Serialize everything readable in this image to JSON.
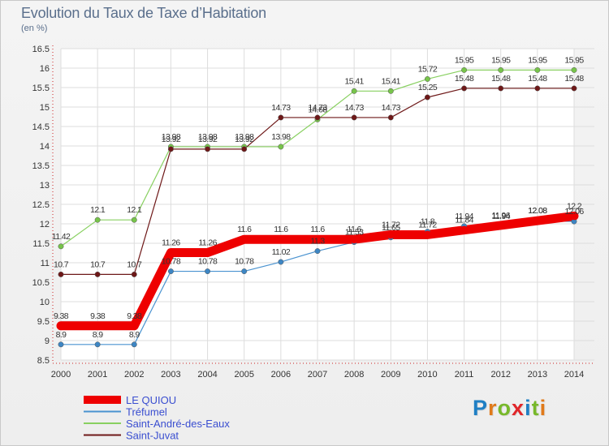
{
  "header": {
    "title": "Evolution du Taux de Taxe d’Habitation",
    "subtitle": "(en %)"
  },
  "logo": {
    "text": "Proxiti",
    "letter_colors": [
      "#1f7fc4",
      "#e07a1a",
      "#77b82a",
      "#e0262a",
      "#1f7fc4",
      "#77b82a",
      "#e07a1a"
    ]
  },
  "chart_data": {
    "type": "line",
    "title": "Evolution du Taux de Taxe d’Habitation",
    "ylabel": "(en %)",
    "xlabel": "",
    "x": [
      "2000",
      "2001",
      "2002",
      "2003",
      "2004",
      "2005",
      "2006",
      "2007",
      "2008",
      "2009",
      "2010",
      "2011",
      "2012",
      "2013",
      "2014"
    ],
    "ylim": [
      8.5,
      16.5
    ],
    "yticks": [
      "8.5",
      "9",
      "9.5",
      "10",
      "10.5",
      "11",
      "11.5",
      "12",
      "12.5",
      "13",
      "13.5",
      "14",
      "14.5",
      "15",
      "15.5",
      "16",
      "16.5"
    ],
    "grid": true,
    "legend_position": "bottom-left",
    "series": [
      {
        "name": "LE QUIOU",
        "color": "#ee0000",
        "marker": "#ee0000",
        "values": [
          9.38,
          9.38,
          9.38,
          11.26,
          11.26,
          11.6,
          11.6,
          11.6,
          11.6,
          11.72,
          11.72,
          11.84,
          11.96,
          12.08,
          12.2
        ],
        "labels": [
          "9.38",
          "9.38",
          "9.38",
          "11.26",
          "11.26",
          "11.6",
          "11.6",
          "11.6",
          "11.6",
          "11.72",
          "11.72",
          "11.84",
          "11.96",
          "12.08",
          "12.2"
        ]
      },
      {
        "name": "Tréfumel",
        "color": "#4a93d0",
        "marker": "#3d86c4",
        "values": [
          8.9,
          8.9,
          8.9,
          10.78,
          10.78,
          10.78,
          11.02,
          11.3,
          11.53,
          11.65,
          11.8,
          11.94,
          11.94,
          12.08,
          12.06
        ],
        "labels": [
          "8.9",
          "8.9",
          "8.9",
          "10.78",
          "10.78",
          "10.78",
          "11.02",
          "11.3",
          "11.53",
          "11.65",
          "11.8",
          "11.94",
          "11.94",
          "12.08",
          "12.06"
        ]
      },
      {
        "name": "Saint-André-des-Eaux",
        "color": "#88d060",
        "marker": "#77c44a",
        "values": [
          11.42,
          12.1,
          12.1,
          13.98,
          13.98,
          13.98,
          13.98,
          14.68,
          15.41,
          15.41,
          15.72,
          15.95,
          15.95,
          15.95,
          15.95
        ],
        "labels": [
          "11.42",
          "12.1",
          "12.1",
          "13.98",
          "13.98",
          "13.98",
          "13.98",
          "14.68",
          "15.41",
          "15.41",
          "15.72",
          "15.95",
          "15.95",
          "15.95",
          "15.95"
        ]
      },
      {
        "name": "Saint-Juvat",
        "color": "#6e1818",
        "marker": "#6e1818",
        "values": [
          10.7,
          10.7,
          10.7,
          13.92,
          13.92,
          13.92,
          14.73,
          14.73,
          14.73,
          14.73,
          15.25,
          15.48,
          15.48,
          15.48,
          15.48
        ],
        "labels": [
          "10.7",
          "10.7",
          "10.7",
          "13.92",
          "13.92",
          "13.92",
          "14.73",
          "14.73",
          "14.73",
          "14.73",
          "15.25",
          "15.48",
          "15.48",
          "15.48",
          "15.48"
        ]
      }
    ]
  }
}
